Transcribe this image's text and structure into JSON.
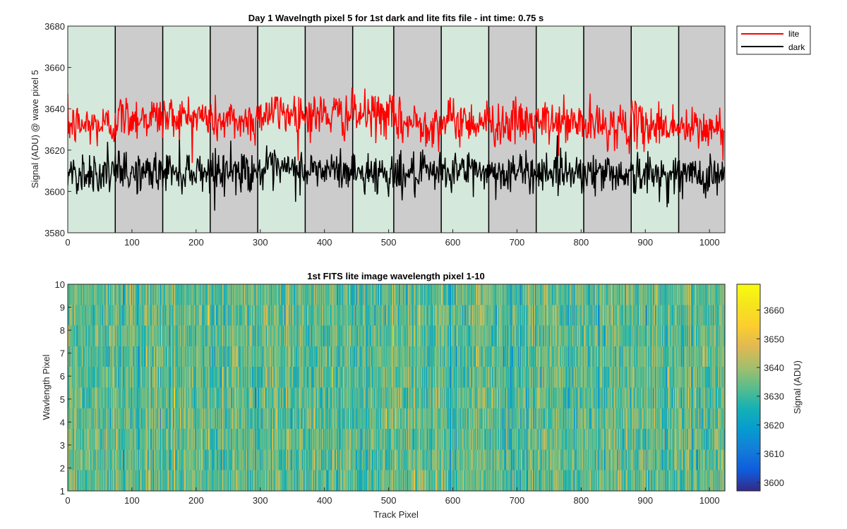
{
  "chart_data": [
    {
      "type": "line",
      "title": "Day 1 Wavelngth pixel 5 for 1st dark and lite fits file - int time: 0.75 s",
      "xlabel": "",
      "ylabel": "Signal (ADU) @ wave pixel 5",
      "xlim": [
        0,
        1024
      ],
      "ylim": [
        3580,
        3680
      ],
      "x_ticks": [
        0,
        100,
        200,
        300,
        400,
        500,
        600,
        700,
        800,
        900,
        1000
      ],
      "y_ticks": [
        3580,
        3600,
        3620,
        3640,
        3660,
        3680
      ],
      "legend_position": "outside top-right",
      "background_bands": {
        "boundaries": [
          0,
          74,
          148,
          222,
          296,
          370,
          444,
          508,
          582,
          656,
          730,
          804,
          878,
          952,
          1024
        ],
        "colors": [
          "#d5e8dc",
          "#cccccc"
        ]
      },
      "series": [
        {
          "name": "lite",
          "color": "#ff0000",
          "samples": 1024,
          "segment_means": [
            {
              "x": [
                0,
                74
              ],
              "mean": 3632
            },
            {
              "x": [
                74,
                148
              ],
              "mean": 3636
            },
            {
              "x": [
                148,
                222
              ],
              "mean": 3636
            },
            {
              "x": [
                222,
                296
              ],
              "mean": 3634
            },
            {
              "x": [
                296,
                370
              ],
              "mean": 3638
            },
            {
              "x": [
                370,
                444
              ],
              "mean": 3637
            },
            {
              "x": [
                444,
                508
              ],
              "mean": 3637
            },
            {
              "x": [
                508,
                582
              ],
              "mean": 3633
            },
            {
              "x": [
                582,
                656
              ],
              "mean": 3634
            },
            {
              "x": [
                656,
                730
              ],
              "mean": 3633
            },
            {
              "x": [
                730,
                804
              ],
              "mean": 3633
            },
            {
              "x": [
                804,
                878
              ],
              "mean": 3632
            },
            {
              "x": [
                878,
                952
              ],
              "mean": 3632
            },
            {
              "x": [
                952,
                1024
              ],
              "mean": 3630
            }
          ],
          "noise_std": 5.5
        },
        {
          "name": "dark",
          "color": "#000000",
          "samples": 1024,
          "segment_means": [
            {
              "x": [
                0,
                74
              ],
              "mean": 3609
            },
            {
              "x": [
                74,
                148
              ],
              "mean": 3609
            },
            {
              "x": [
                148,
                222
              ],
              "mean": 3610
            },
            {
              "x": [
                222,
                296
              ],
              "mean": 3610
            },
            {
              "x": [
                296,
                370
              ],
              "mean": 3610
            },
            {
              "x": [
                370,
                444
              ],
              "mean": 3610
            },
            {
              "x": [
                444,
                508
              ],
              "mean": 3609
            },
            {
              "x": [
                508,
                582
              ],
              "mean": 3608
            },
            {
              "x": [
                582,
                656
              ],
              "mean": 3610
            },
            {
              "x": [
                656,
                730
              ],
              "mean": 3609
            },
            {
              "x": [
                730,
                804
              ],
              "mean": 3610
            },
            {
              "x": [
                804,
                878
              ],
              "mean": 3609
            },
            {
              "x": [
                878,
                952
              ],
              "mean": 3608
            },
            {
              "x": [
                952,
                1024
              ],
              "mean": 3608
            }
          ],
          "noise_std": 5
        }
      ]
    },
    {
      "type": "heatmap",
      "title": "1st FITS lite image wavelength pixel 1-10",
      "xlabel": "Track Pixel",
      "ylabel": "Wavlength Pixel",
      "xlim": [
        0,
        1024
      ],
      "ylim": [
        1,
        10
      ],
      "x_ticks": [
        0,
        100,
        200,
        300,
        400,
        500,
        600,
        700,
        800,
        900,
        1000
      ],
      "y_ticks": [
        1,
        2,
        3,
        4,
        5,
        6,
        7,
        8,
        9,
        10
      ],
      "rows": 10,
      "columns": 1024,
      "colorbar": {
        "label": "Signal (ADU)",
        "range": [
          3597,
          3669
        ],
        "ticks": [
          3600,
          3610,
          3620,
          3630,
          3640,
          3650,
          3660
        ],
        "colormap": "parula"
      },
      "value_mean": 3633,
      "value_std": 8
    }
  ]
}
